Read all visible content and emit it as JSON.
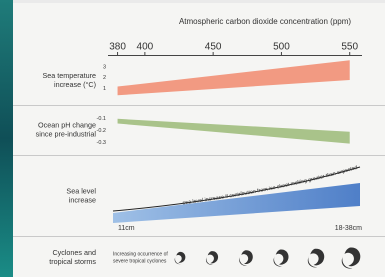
{
  "chart_data": [
    {
      "type": "band",
      "xlabel": "Atmospheric carbon dioxide concentration (ppm)",
      "xlim": [
        373,
        559
      ],
      "xticks": [
        380,
        400,
        450,
        500,
        550
      ],
      "ylabel": [
        "Sea temperature",
        "increase (°C)"
      ],
      "ylim": [
        -0.4,
        3.9
      ],
      "yticks": [
        3,
        2,
        1
      ],
      "x": [
        380,
        550
      ],
      "upper": [
        1.2,
        3.6
      ],
      "lower": [
        0.4,
        1.8
      ],
      "color": "#f29a82"
    },
    {
      "type": "band",
      "ylabel": [
        "Ocean pH change",
        "since pre-industrial"
      ],
      "ylim": [
        -0.39,
        0
      ],
      "yticks": [
        -0.1,
        -0.2,
        -0.3
      ],
      "x": [
        380,
        550
      ],
      "upper": [
        -0.1,
        -0.21
      ],
      "lower": [
        -0.14,
        -0.31
      ],
      "color": "#a9c38a"
    },
    {
      "type": "sea-level",
      "ylabel": [
        "Sea level",
        "increase"
      ],
      "annotation": "sea level increase if contribution from ice sheet melting greater than expected",
      "start_label": "11cm",
      "end_label": "18-38cm"
    },
    {
      "type": "icons",
      "ylabel": [
        "Cyclones and",
        "tropical storms"
      ],
      "annotation": [
        "Increasing occurrence of",
        "severe tropical cyclones"
      ]
    }
  ]
}
